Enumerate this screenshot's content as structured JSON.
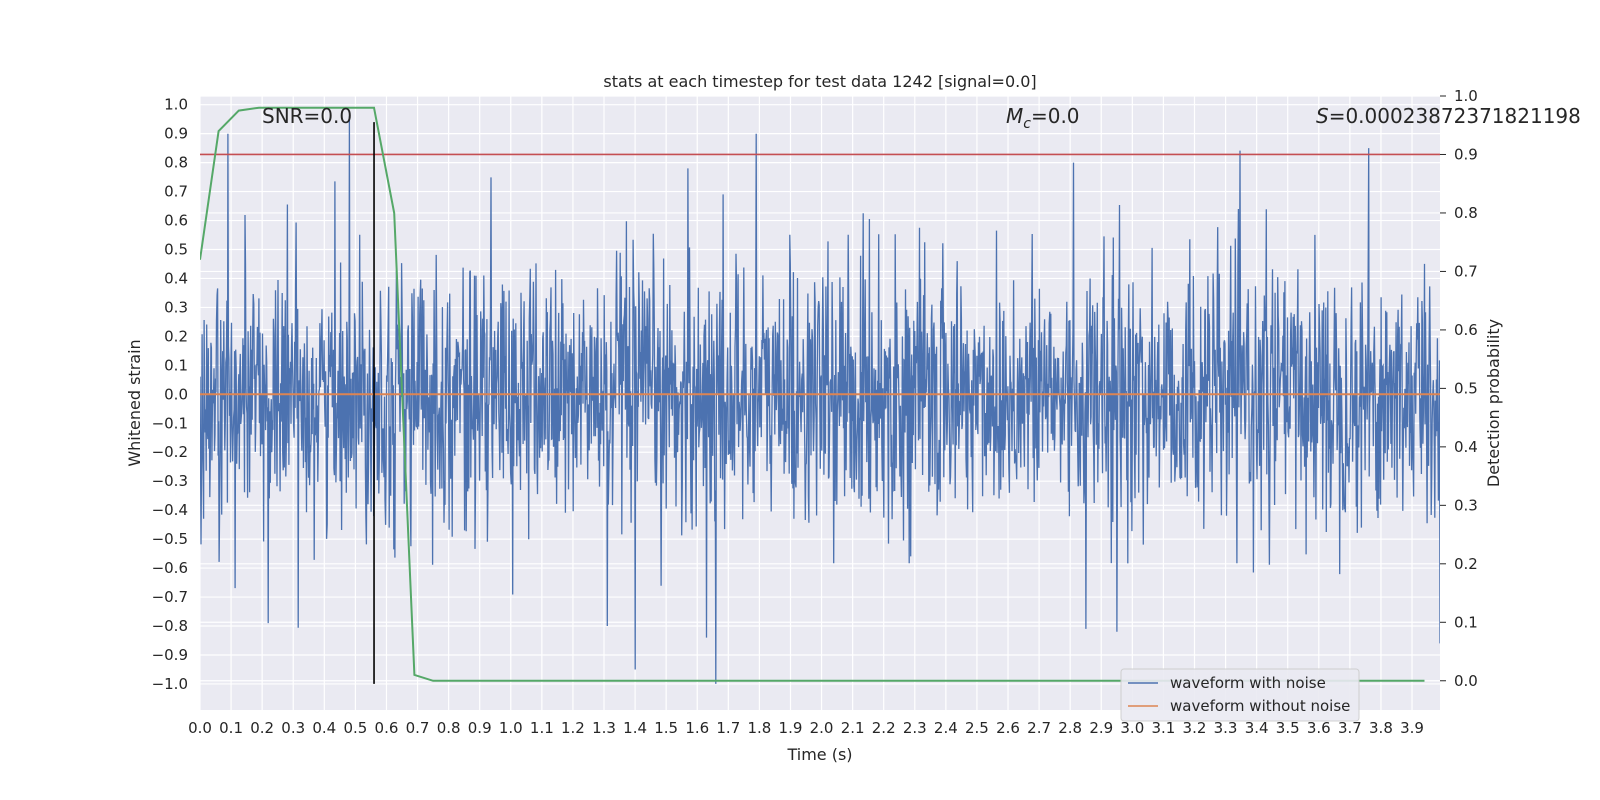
{
  "chart_data": {
    "type": "line",
    "title": "stats at each timestep for test data 1242 [signal=0.0]",
    "xlabel": "Time (s)",
    "ylabel": "Whitened strain",
    "y2label": "Detection probability",
    "xlim": [
      0.0,
      3.99
    ],
    "ylim": [
      -1.09,
      1.03
    ],
    "y2lim": [
      -0.05,
      1.0
    ],
    "xticks": [
      "0.0",
      "0.1",
      "0.2",
      "0.3",
      "0.4",
      "0.5",
      "0.6",
      "0.7",
      "0.8",
      "0.9",
      "1.0",
      "1.1",
      "1.2",
      "1.3",
      "1.4",
      "1.5",
      "1.6",
      "1.7",
      "1.8",
      "1.9",
      "2.0",
      "2.1",
      "2.2",
      "2.3",
      "2.4",
      "2.5",
      "2.6",
      "2.7",
      "2.8",
      "2.9",
      "3.0",
      "3.1",
      "3.2",
      "3.3",
      "3.4",
      "3.5",
      "3.6",
      "3.7",
      "3.8",
      "3.9"
    ],
    "yticks": [
      "1.0",
      "0.9",
      "0.8",
      "0.7",
      "0.6",
      "0.5",
      "0.4",
      "0.3",
      "0.2",
      "0.1",
      "0.0",
      "−0.1",
      "−0.2",
      "−0.3",
      "−0.4",
      "−0.5",
      "−0.6",
      "−0.7",
      "−0.8",
      "−0.9",
      "−1.0"
    ],
    "y2ticks": [
      "0.0",
      "0.1",
      "0.2",
      "0.3",
      "0.4",
      "0.5",
      "0.6",
      "0.7",
      "0.8",
      "0.9",
      "1.0"
    ],
    "grid": true,
    "legend_position": "lower-right",
    "series": [
      {
        "name": "waveform with noise",
        "color": "#4c72b0",
        "axis": "left",
        "noise_amplitude": 0.22,
        "peaks": [
          {
            "x": 0.09,
            "y": 0.9
          },
          {
            "x": 0.48,
            "y": 0.96
          },
          {
            "x": 1.57,
            "y": 0.78
          },
          {
            "x": 1.79,
            "y": 0.9
          },
          {
            "x": 2.81,
            "y": 0.8
          },
          {
            "x": 3.76,
            "y": 0.85
          },
          {
            "x": 1.66,
            "y": -1.0
          },
          {
            "x": 1.4,
            "y": -0.95
          },
          {
            "x": 0.22,
            "y": -0.79
          },
          {
            "x": 2.85,
            "y": -0.81
          },
          {
            "x": 2.95,
            "y": -0.82
          },
          {
            "x": 3.99,
            "y": -0.86
          },
          {
            "x": 1.63,
            "y": -0.84
          },
          {
            "x": 1.31,
            "y": -0.8
          }
        ]
      },
      {
        "name": "waveform without noise",
        "color": "#dd8452",
        "axis": "left",
        "x": [
          0.0,
          3.99
        ],
        "y": [
          0.0,
          0.0
        ]
      },
      {
        "name": "",
        "color": "#55a868",
        "axis": "right",
        "x": [
          0.0,
          0.06,
          0.125,
          0.19,
          0.25,
          0.31,
          0.375,
          0.44,
          0.5,
          0.56,
          0.625,
          0.69,
          0.75,
          0.81,
          0.875,
          1.0,
          1.5,
          2.0,
          2.5,
          3.0,
          3.5,
          3.94
        ],
        "y": [
          0.72,
          0.94,
          0.975,
          0.98,
          0.98,
          0.98,
          0.98,
          0.98,
          0.98,
          0.98,
          0.8,
          0.01,
          0.0,
          0.0,
          0.0,
          0.0,
          0.0,
          0.0,
          0.0,
          0.0,
          0.0,
          0.0
        ]
      }
    ],
    "threshold": {
      "axis": "right",
      "y": 0.9,
      "color": "#c44e52"
    },
    "vline": {
      "x": 0.56,
      "y_from": -1.0,
      "y_to": 0.94,
      "color": "#000000"
    },
    "annotations": {
      "snr": "SNR=0.0",
      "mc_symbol": "M",
      "mc_subscript": "c",
      "mc_value": "=0.0",
      "s_symbol": "S",
      "s_value": "=0.00023872371821198"
    }
  }
}
